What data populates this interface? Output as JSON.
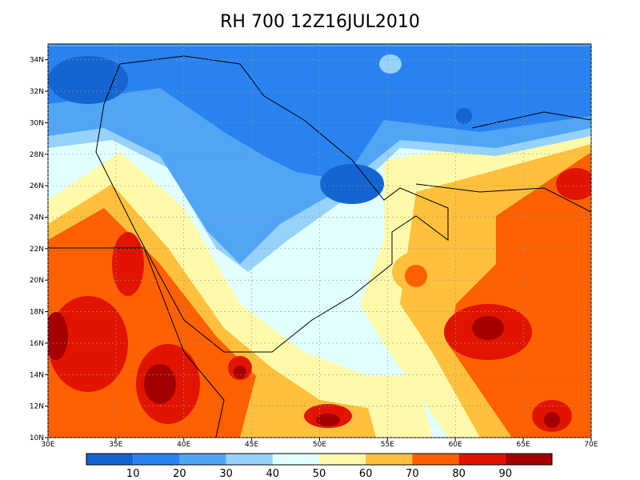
{
  "title": "RH 700 12Z16JUL2010",
  "lon_ticks": [
    {
      "value": 30,
      "label": "30E"
    },
    {
      "value": 35,
      "label": "35E"
    },
    {
      "value": 40,
      "label": "40E"
    },
    {
      "value": 45,
      "label": "45E"
    },
    {
      "value": 50,
      "label": "50E"
    },
    {
      "value": 55,
      "label": "55E"
    },
    {
      "value": 60,
      "label": "60E"
    },
    {
      "value": 65,
      "label": "65E"
    },
    {
      "value": 70,
      "label": "70E"
    }
  ],
  "lat_ticks": [
    {
      "value": 10,
      "label": "10N"
    },
    {
      "value": 12,
      "label": "12N"
    },
    {
      "value": 14,
      "label": "14N"
    },
    {
      "value": 16,
      "label": "16N"
    },
    {
      "value": 18,
      "label": "18N"
    },
    {
      "value": 20,
      "label": "20N"
    },
    {
      "value": 22,
      "label": "22N"
    },
    {
      "value": 24,
      "label": "24N"
    },
    {
      "value": 26,
      "label": "26N"
    },
    {
      "value": 28,
      "label": "28N"
    },
    {
      "value": 30,
      "label": "30N"
    },
    {
      "value": 32,
      "label": "32N"
    },
    {
      "value": 34,
      "label": "34N"
    }
  ],
  "lon_range": [
    30,
    70
  ],
  "lat_range": [
    10,
    35
  ],
  "colorbar": {
    "levels": [
      10,
      20,
      30,
      40,
      50,
      60,
      70,
      80,
      90
    ],
    "colors": [
      "#1464d2",
      "#2882f0",
      "#50a5f5",
      "#96d2fa",
      "#e1ffff",
      "#fffaaa",
      "#ffc03c",
      "#ff6000",
      "#e11400",
      "#a50000"
    ]
  }
}
